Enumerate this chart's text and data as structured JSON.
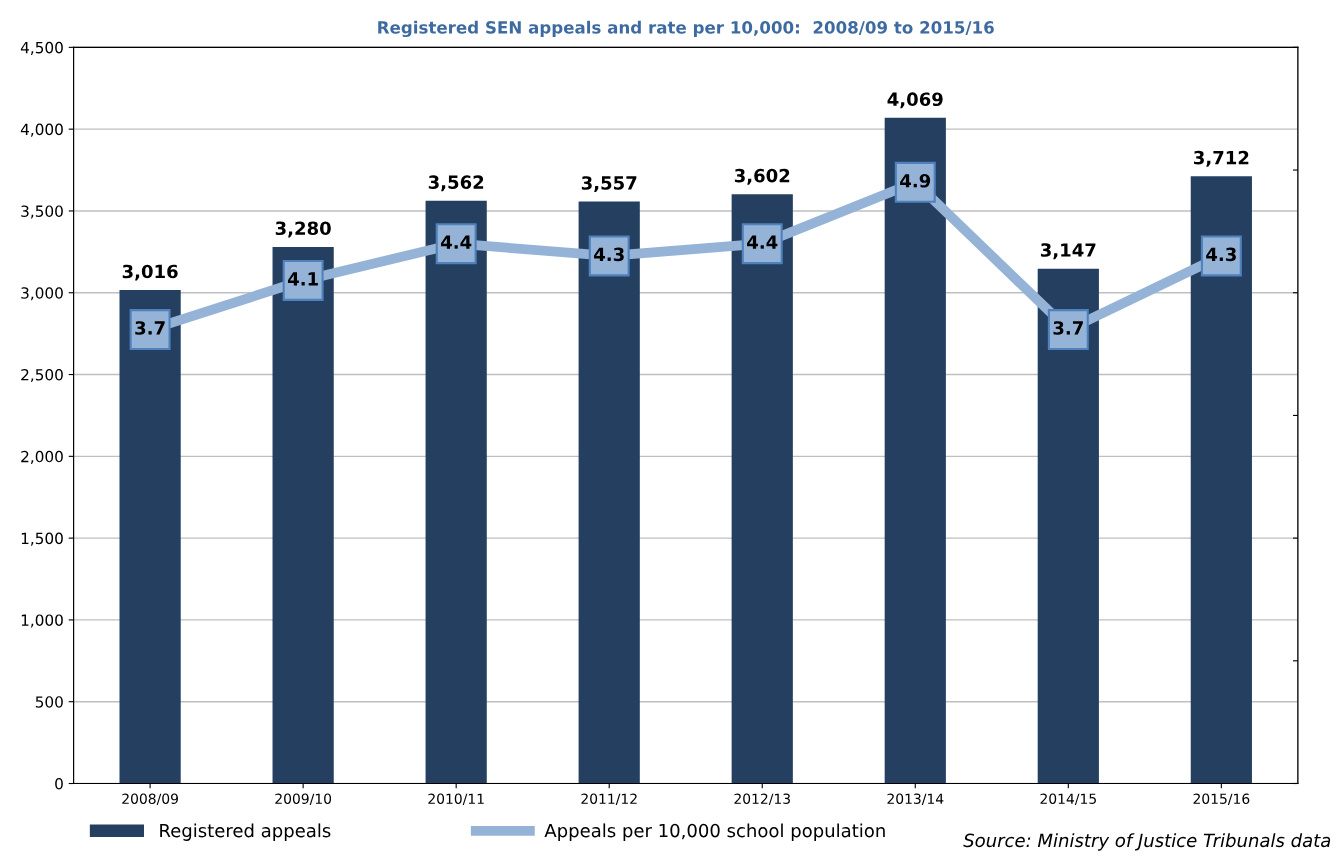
{
  "chart_data": {
    "type": "bar",
    "title": "Registered SEN appeals and rate per 10,000:  2008/09 to 2015/16",
    "categories": [
      "2008/09",
      "2009/10",
      "2010/11",
      "2011/12",
      "2012/13",
      "2013/14",
      "2014/15",
      "2015/16"
    ],
    "series": [
      {
        "name": "Registered appeals",
        "color": "#243f60",
        "values": [
          3016,
          3280,
          3562,
          3557,
          3602,
          4069,
          3147,
          3712
        ],
        "value_labels": [
          "3,016",
          "3,280",
          "3,562",
          "3,557",
          "3,602",
          "4,069",
          "3,147",
          "3,712"
        ]
      },
      {
        "name": "Appeals per 10,000 school population",
        "type": "line",
        "axis": "y2",
        "color": "#95b3d7",
        "marker": "square",
        "values": [
          3.7,
          4.1,
          4.4,
          4.3,
          4.4,
          4.9,
          3.7,
          4.3
        ]
      }
    ],
    "ylim": [
      0,
      4500
    ],
    "yticks": [
      {
        "value": 0,
        "label": "0"
      },
      {
        "value": 500,
        "label": "500"
      },
      {
        "value": 1000,
        "label": "1,000"
      },
      {
        "value": 1500,
        "label": "1,500"
      },
      {
        "value": 2000,
        "label": "2,000"
      },
      {
        "value": 2500,
        "label": "2,500"
      },
      {
        "value": 3000,
        "label": "3,000"
      },
      {
        "value": 3500,
        "label": "3,500"
      },
      {
        "value": 4000,
        "label": "4,000"
      },
      {
        "value": 4500,
        "label": "4,500"
      }
    ],
    "y2lim": [
      0,
      6
    ],
    "y2ticks": [
      {
        "value": 0,
        "label": null
      },
      {
        "value": 1,
        "label": null
      },
      {
        "value": 2,
        "label": null
      },
      {
        "value": 3,
        "label": null
      },
      {
        "value": 4,
        "label": null
      },
      {
        "value": 5,
        "label": null
      },
      {
        "value": 6,
        "label": null
      }
    ],
    "grid": "y",
    "legend": "bottom",
    "data_labels": true,
    "annotations": [
      "Source: Ministry of Justice Tribunals data"
    ]
  }
}
